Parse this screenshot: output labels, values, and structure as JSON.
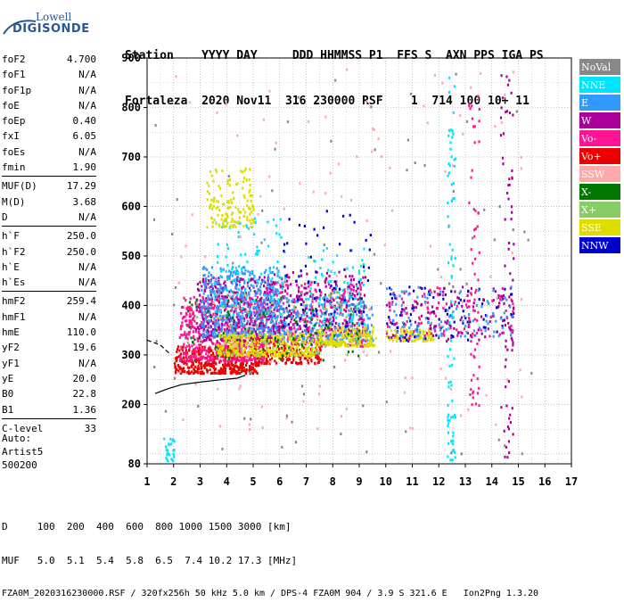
{
  "logo": {
    "line1": "Lowell",
    "line2": "DIGISONDE"
  },
  "header": {
    "labels": "Station    YYYY DAY     DDD HHMMSS P1  FFS S  AXN PPS IGA PS",
    "values": "Fortaleza  2020 Nov11  316 230000 RSF    1  714 100 10+ 11"
  },
  "params": [
    [
      {
        "label": "foF2",
        "value": "4.700"
      },
      {
        "label": "foF1",
        "value": "N/A"
      },
      {
        "label": "foF1p",
        "value": "N/A"
      },
      {
        "label": "foE",
        "value": "N/A"
      },
      {
        "label": "foEp",
        "value": "0.40"
      },
      {
        "label": "fxI",
        "value": "6.05"
      },
      {
        "label": "foEs",
        "value": "N/A"
      },
      {
        "label": "fmin",
        "value": "1.90"
      }
    ],
    [
      {
        "label": "MUF(D)",
        "value": "17.29"
      },
      {
        "label": "M(D)",
        "value": "3.68"
      },
      {
        "label": "D",
        "value": "N/A"
      }
    ],
    [
      {
        "label": "h`F",
        "value": "250.0"
      },
      {
        "label": "h`F2",
        "value": "250.0"
      },
      {
        "label": "h`E",
        "value": "N/A"
      },
      {
        "label": "h`Es",
        "value": "N/A"
      }
    ],
    [
      {
        "label": "hmF2",
        "value": "259.4"
      },
      {
        "label": "hmF1",
        "value": "N/A"
      },
      {
        "label": "hmE",
        "value": "110.0"
      },
      {
        "label": "yF2",
        "value": "19.6"
      },
      {
        "label": "yF1",
        "value": "N/A"
      },
      {
        "label": "yE",
        "value": "20.0"
      },
      {
        "label": "B0",
        "value": "22.8"
      },
      {
        "label": "B1",
        "value": "1.36"
      }
    ],
    [
      {
        "label": "C-level",
        "value": "33"
      }
    ]
  ],
  "auto": {
    "line1": "Auto:",
    "line2": "Artist5",
    "line3": "500200"
  },
  "footer": {
    "d_row": "D     100  200  400  600  800 1000 1500 3000 [km]",
    "muf_row": "MUF   5.0  5.1  5.4  5.8  6.5  7.4 10.2 17.3 [MHz]",
    "file_row": "FZA0M_2020316230000.RSF / 320fx256h 50 kHz 5.0 km / DPS-4 FZA0M 904 / 3.9 S 321.6 E   Ion2Png 1.3.20"
  },
  "chart_data": {
    "type": "scatter",
    "x_ticks": [
      1,
      2,
      3,
      4,
      5,
      6,
      7,
      8,
      9,
      10,
      11,
      12,
      13,
      14,
      15,
      16,
      17
    ],
    "y_ticks": [
      80,
      200,
      300,
      400,
      500,
      600,
      700,
      800,
      900
    ],
    "xlim": [
      1,
      17
    ],
    "ylim": [
      80,
      900
    ],
    "grid": true,
    "legend_position": "right",
    "legend": [
      {
        "name": "NoVal",
        "color": "#888888",
        "text_color": "#ffffff"
      },
      {
        "name": "NNE",
        "color": "#00e5ff",
        "text_color": "#ffffff"
      },
      {
        "name": "E",
        "color": "#3399ff",
        "text_color": "#ffffff"
      },
      {
        "name": "W",
        "color": "#aa0099",
        "text_color": "#ffffff"
      },
      {
        "name": "Vo-",
        "color": "#ff1493",
        "text_color": "#ffffff"
      },
      {
        "name": "Vo+",
        "color": "#ee0000",
        "text_color": "#ffffff"
      },
      {
        "name": "SSW",
        "color": "#ffaaaa",
        "text_color": "#ffffff"
      },
      {
        "name": "X-",
        "color": "#007700",
        "text_color": "#ffffff"
      },
      {
        "name": "X+",
        "color": "#88cc66",
        "text_color": "#ffffff"
      },
      {
        "name": "SSE",
        "color": "#dddd00",
        "text_color": "#ffffff"
      },
      {
        "name": "NNW",
        "color": "#0000cc",
        "text_color": "#ffffff"
      }
    ],
    "clusters": [
      {
        "color": "#ee0000",
        "f": [
          2.0,
          5.2
        ],
        "h": [
          265,
          320
        ],
        "n": 420
      },
      {
        "color": "#ee0000",
        "f": [
          5.0,
          7.6
        ],
        "h": [
          285,
          340
        ],
        "n": 220
      },
      {
        "color": "#ff1493",
        "f": [
          2.2,
          5.4
        ],
        "h": [
          290,
          420
        ],
        "n": 520
      },
      {
        "color": "#ff1493",
        "f": [
          5.0,
          9.2
        ],
        "h": [
          320,
          450
        ],
        "n": 320
      },
      {
        "color": "#aa0099",
        "f": [
          2.8,
          5.8
        ],
        "h": [
          330,
          460
        ],
        "n": 380
      },
      {
        "color": "#aa0099",
        "f": [
          5.5,
          9.2
        ],
        "h": [
          340,
          470
        ],
        "n": 260
      },
      {
        "color": "#3399ff",
        "f": [
          3.0,
          6.0
        ],
        "h": [
          340,
          480
        ],
        "n": 420
      },
      {
        "color": "#3399ff",
        "f": [
          6.0,
          9.5
        ],
        "h": [
          330,
          420
        ],
        "n": 220
      },
      {
        "color": "#00e5ff",
        "f": [
          3.5,
          6.2
        ],
        "h": [
          380,
          580
        ],
        "n": 120
      },
      {
        "color": "#00e5ff",
        "f": [
          7.0,
          9.2
        ],
        "h": [
          360,
          520
        ],
        "n": 90
      },
      {
        "color": "#dddd00",
        "f": [
          3.6,
          7.4
        ],
        "h": [
          300,
          345
        ],
        "n": 320
      },
      {
        "color": "#dddd00",
        "f": [
          7.4,
          9.6
        ],
        "h": [
          320,
          360
        ],
        "n": 180
      },
      {
        "color": "#dddd00",
        "f": [
          3.2,
          5.0
        ],
        "h": [
          560,
          680
        ],
        "n": 130
      },
      {
        "color": "#dddd00",
        "f": [
          10.0,
          11.8
        ],
        "h": [
          330,
          355
        ],
        "n": 90
      },
      {
        "color": "#007700",
        "f": [
          2.5,
          9.0
        ],
        "h": [
          290,
          420
        ],
        "n": 90
      },
      {
        "color": "#88cc66",
        "f": [
          2.5,
          9.0
        ],
        "h": [
          300,
          430
        ],
        "n": 90
      },
      {
        "color": "#0000cc",
        "f": [
          6.0,
          9.4
        ],
        "h": [
          360,
          600
        ],
        "n": 70
      },
      {
        "color": "#0000cc",
        "f": [
          10.0,
          14.8
        ],
        "h": [
          330,
          440
        ],
        "n": 90
      },
      {
        "color": "#aa0099",
        "f": [
          10.0,
          14.8
        ],
        "h": [
          330,
          440
        ],
        "n": 100
      },
      {
        "color": "#3399ff",
        "f": [
          10.0,
          14.8
        ],
        "h": [
          340,
          440
        ],
        "n": 110
      },
      {
        "color": "#ff1493",
        "f": [
          10.0,
          14.8
        ],
        "h": [
          340,
          440
        ],
        "n": 90
      },
      {
        "color": "#ffaaaa",
        "f": [
          2.0,
          15.5
        ],
        "h": [
          150,
          880
        ],
        "n": 120
      },
      {
        "color": "#888888",
        "f": [
          1.0,
          15.5
        ],
        "h": [
          100,
          880
        ],
        "n": 80
      },
      {
        "color": "#00e5ff",
        "f": [
          12.3,
          12.6
        ],
        "h": [
          90,
          880
        ],
        "n": 80
      },
      {
        "color": "#aa0099",
        "f": [
          14.3,
          14.8
        ],
        "h": [
          90,
          880
        ],
        "n": 70
      },
      {
        "color": "#ff1493",
        "f": [
          13.1,
          13.5
        ],
        "h": [
          200,
          880
        ],
        "n": 60
      },
      {
        "color": "#00e5ff",
        "f": [
          1.6,
          2.0
        ],
        "h": [
          80,
          140
        ],
        "n": 30
      }
    ],
    "profile_curve": [
      [
        1.3,
        222
      ],
      [
        1.8,
        232
      ],
      [
        2.3,
        240
      ],
      [
        3.0,
        245
      ],
      [
        3.8,
        250
      ],
      [
        4.4,
        253
      ],
      [
        4.7,
        259
      ]
    ],
    "ordinary_trace": [
      [
        1.0,
        330
      ],
      [
        1.5,
        320
      ],
      [
        1.9,
        300
      ]
    ]
  }
}
